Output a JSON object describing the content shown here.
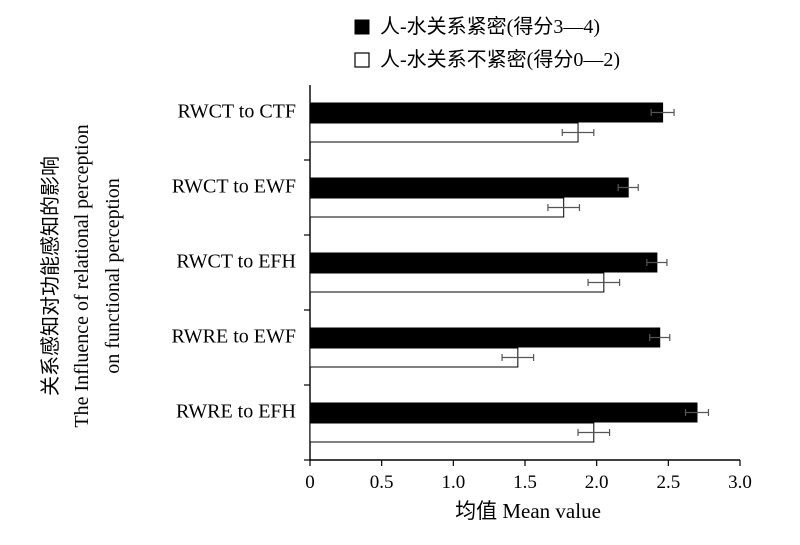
{
  "chart_data": {
    "type": "bar",
    "orientation": "horizontal",
    "categories": [
      "RWCT to CTF",
      "RWCT to EWF",
      "RWCT to EFH",
      "RWRE to EWF",
      "RWRE to EFH"
    ],
    "series": [
      {
        "name": "人-水关系紧密(得分3—4)",
        "fill": "#000000",
        "values": [
          2.46,
          2.22,
          2.42,
          2.44,
          2.7
        ],
        "errors": [
          0.08,
          0.07,
          0.07,
          0.07,
          0.08
        ]
      },
      {
        "name": "人-水关系不紧密(得分0—2)",
        "fill": "#ffffff",
        "values": [
          1.87,
          1.77,
          2.05,
          1.45,
          1.98
        ],
        "errors": [
          0.11,
          0.11,
          0.11,
          0.11,
          0.11
        ]
      }
    ],
    "xlim": [
      0,
      3.0
    ],
    "xticks": [
      "0",
      "0.5",
      "1.0",
      "1.5",
      "2.0",
      "2.5",
      "3.0"
    ],
    "xlabel": "均值 Mean value",
    "ylabel_lines": [
      "关系感知对功能感知的影响",
      "The Influence of relational perception",
      "on functional perception"
    ],
    "legend_position": "top-right",
    "grid": false
  }
}
